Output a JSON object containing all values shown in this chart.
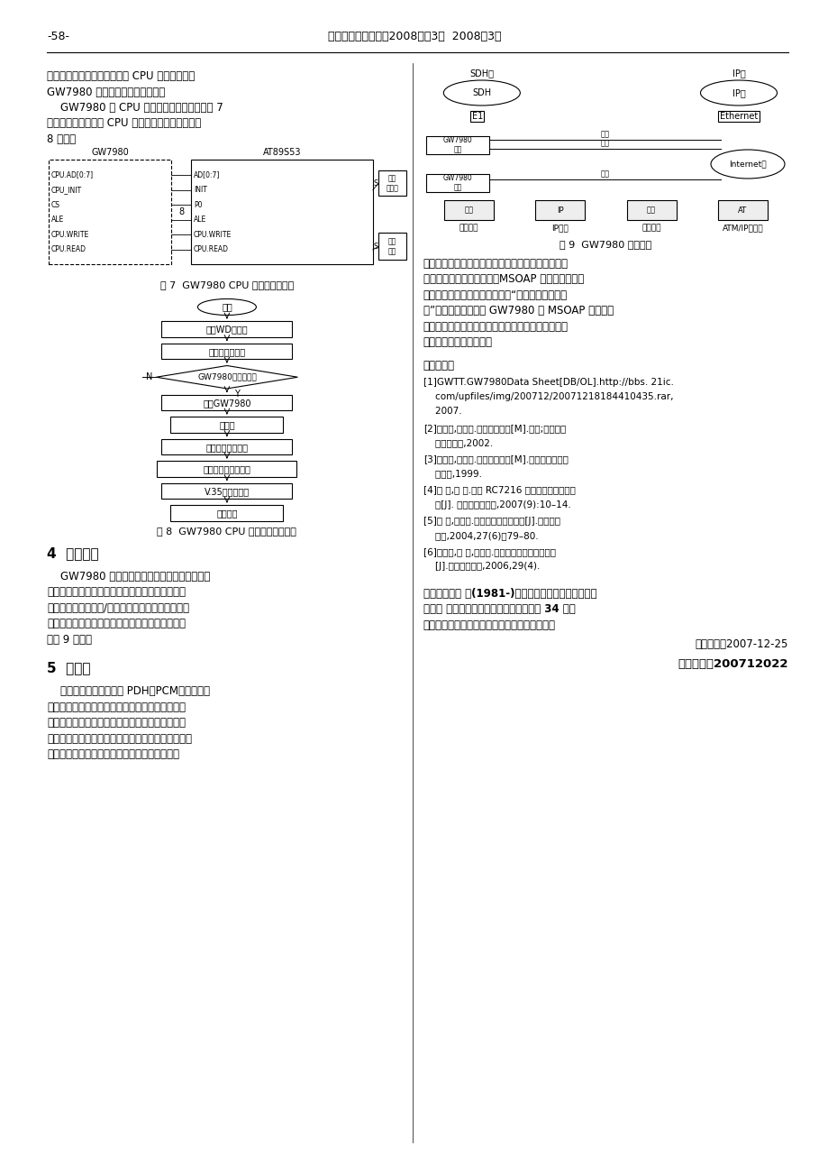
{
  "background_color": "#ffffff",
  "page_width": 9.2,
  "page_height": 13.02,
  "header_text": "《国外电子元器件》2008年第3期  2008年3月",
  "header_left": "-58-",
  "left_texts": [
    "作状态；通过外部拨码开关经 CPU 控制电路设置",
    "GW7980 的工作模式和使能功能。",
    "    GW7980 的 CPU 控制接口电路连接图如图 7",
    "所示，并且给出了其 CPU 控制主程序流程图，如图",
    "8 所示。"
  ],
  "gw_inner": [
    "CPU.AD[0:7]",
    "CPU_INIT",
    "CS",
    "ALE",
    "CPU.WRITE",
    "CPU.READ"
  ],
  "at_inner": [
    "AD[0:7]",
    "INIT",
    "P0",
    "ALE",
    "CPU.WRITE",
    "CPU.READ"
  ],
  "fig7_caption": "图 7  GW7980 CPU 控制接口连接图",
  "fc_boxes": [
    "启动WD定时器",
    "填单片机定时器",
    "GW7980自检通过？",
    "配置GW7980",
    "开中断",
    "误码率查询子程序",
    "光口告警查询子程序",
    "V.35设置子程序",
    "喂狗程序"
  ],
  "fig8_caption": "图 8  GW7980 CPU 控制主程序流程图",
  "sec4_title": "4  应用方案",
  "sec4_texts": [
    "    GW7980 可将多种业务复接通过光信号远距离",
    "传输，可应用于各种交换机之间的信号传输、移动",
    "基站连接和各种公用/专用网的连接，实现话音、数",
    "据、图像等综合业务的系统接入，其主要应用方式",
    "如图 9 所示。"
  ],
  "sec5_title": "5  结束语",
  "sec5_texts": [
    "    传统的接入网传输是由 PDH、PCM、协议转换",
    "器、以太网交换机等多种设备组成。运营商无论是",
    "从产品的选型采购、机房管理还是设备的维护与维",
    "修，都存在诸多困扰。为满足用户需求，需要不同设",
    "备组成链路，因此产品的选型采购需多次才能完"
  ],
  "fig9_caption": "图 9  GW7980 应用方式",
  "right_texts": [
    "成；其次，不同厂家的设备，无法统一管理，这对接",
    "入网络存在巨大安全隐患。MSOAP 为客户提供多客",
    "户端的管理架构，支持运维部门“集中管理，分层维",
    "护”的管理需求，基于 GW7980 的 MSOAP 丰富的业",
    "务接口、灵活的配置、光路设计等优点，必将在接入",
    "网的使用方面应用广泛。"
  ],
  "ref_title": "参考文献：",
  "references": [
    [
      "[1]GWTT.GW7980Data Sheet[DB/OL].http://bbs. 21ic.",
      "    com/upfiles/img/200712/20071218184410435.rar,",
      "    2007."
    ],
    [
      "[2]颜晓仪,李过琉.光纤通信系统[M].北京;人民邮电",
      "    大学出版社,2002."
    ],
    [
      "[3]吴贵玉,甘育裕.数字通信原理[M].北京；中国物资",
      "    出版社,1999."
    ],
    [
      "[4]李 恩,郑 达.基于 RC7216 的以太网桥设计及应",
      "    用[J]. 国外电子元器件,2007(9):10–14."
    ],
    [
      "[5]丁 山,刘增基.光纤通信的测量技术[J].现代电子",
      "    技术,2004,27(6)：79–80."
    ],
    [
      "[6]刘球颖,李 琳,李瑞华.以太网宽带接入管理技术",
      "    [J].现代电子技术,2006,29(4)."
    ]
  ],
  "bio_texts": [
    "作者简介：颜 凌(1981-)，男，江苏省高邮市人，学士",
    "学位， 现工作于中国电子科技集团公司第 34 研究",
    "所助理工程师，从事光通信设备的研究和设计。"
  ],
  "date_text": "收稿日期：2007-12-25",
  "manuscript_text": "稿件编号：200712022",
  "sdh_label": "SDH网",
  "sdh_inner": "SDH",
  "ip_label": "IP网",
  "fiber_labels": [
    "光纤",
    "光纤",
    "光纤"
  ],
  "internet_label": "Internet网",
  "gw_dev_label": "GW7980\n设备",
  "e1_label": "E1",
  "ethernet_label": "Ethernet",
  "bottom_items": [
    "市话业务",
    "IP业务",
    "无线基站",
    "ATM/IP交换机"
  ],
  "start_label": "开始",
  "n_label": "N",
  "y_label": "Y",
  "box1_label": "状态\n指示灯",
  "box2_label": "拨码\n开关",
  "gw_title": "GW7980",
  "at_title": "AT89S53",
  "s_label": "S"
}
